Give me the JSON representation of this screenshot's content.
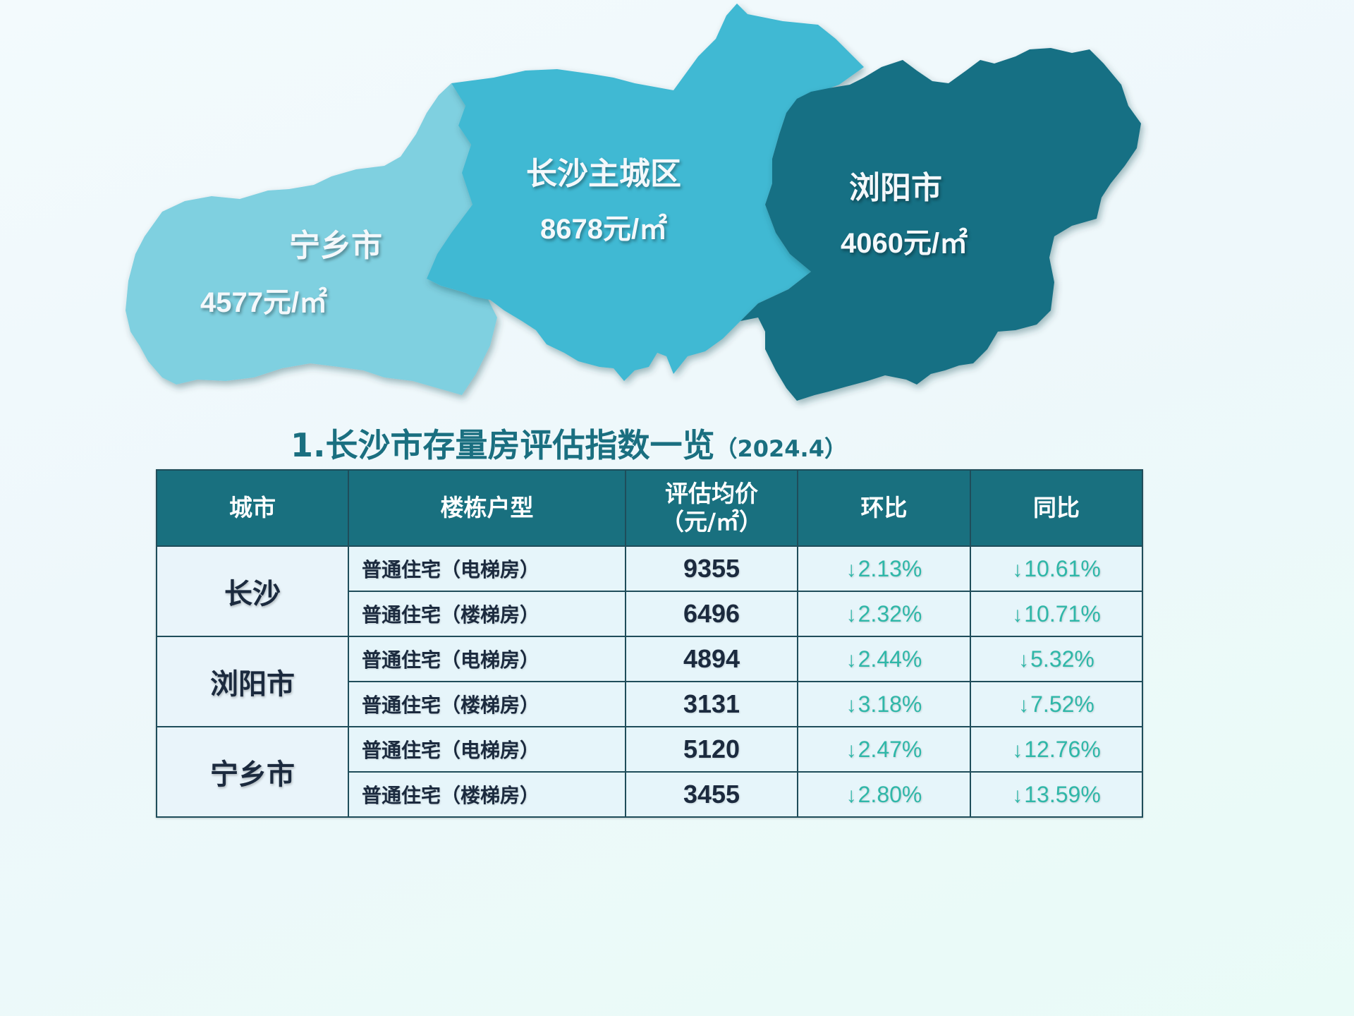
{
  "colors": {
    "ningxiang": "#7fd0e0",
    "changsha": "#40b9d3",
    "liuyang": "#187084",
    "header_bg": "#19707f",
    "decline_text": "#2fb7a8",
    "title_text": "#1a6f80"
  },
  "map": {
    "regions": [
      {
        "key": "ningxiang",
        "name": "宁乡市",
        "price": "4577元/㎡"
      },
      {
        "key": "changsha",
        "name": "长沙主城区",
        "price": "8678元/㎡"
      },
      {
        "key": "liuyang",
        "name": "浏阳市",
        "price": "4060元/㎡"
      }
    ]
  },
  "title": {
    "main": "1.长沙市存量房评估指数一览",
    "period": "（2024.4）"
  },
  "table": {
    "headers": {
      "city": "城市",
      "type": "楼栋户型",
      "price_line1": "评估均价",
      "price_line2": "（元/㎡）",
      "mom": "环比",
      "yoy": "同比"
    },
    "down_icon": "down-arrow-icon",
    "groups": [
      {
        "city": "长沙",
        "rows": [
          {
            "type": "普通住宅（电梯房）",
            "price": "9355",
            "mom": "2.13%",
            "yoy": "10.61%"
          },
          {
            "type": "普通住宅（楼梯房）",
            "price": "6496",
            "mom": "2.32%",
            "yoy": "10.71%"
          }
        ]
      },
      {
        "city": "浏阳市",
        "rows": [
          {
            "type": "普通住宅（电梯房）",
            "price": "4894",
            "mom": "2.44%",
            "yoy": "5.32%"
          },
          {
            "type": "普通住宅（楼梯房）",
            "price": "3131",
            "mom": "3.18%",
            "yoy": "7.52%"
          }
        ]
      },
      {
        "city": "宁乡市",
        "rows": [
          {
            "type": "普通住宅（电梯房）",
            "price": "5120",
            "mom": "2.47%",
            "yoy": "12.76%"
          },
          {
            "type": "普通住宅（楼梯房）",
            "price": "3455",
            "mom": "2.80%",
            "yoy": "13.59%"
          }
        ]
      }
    ]
  }
}
